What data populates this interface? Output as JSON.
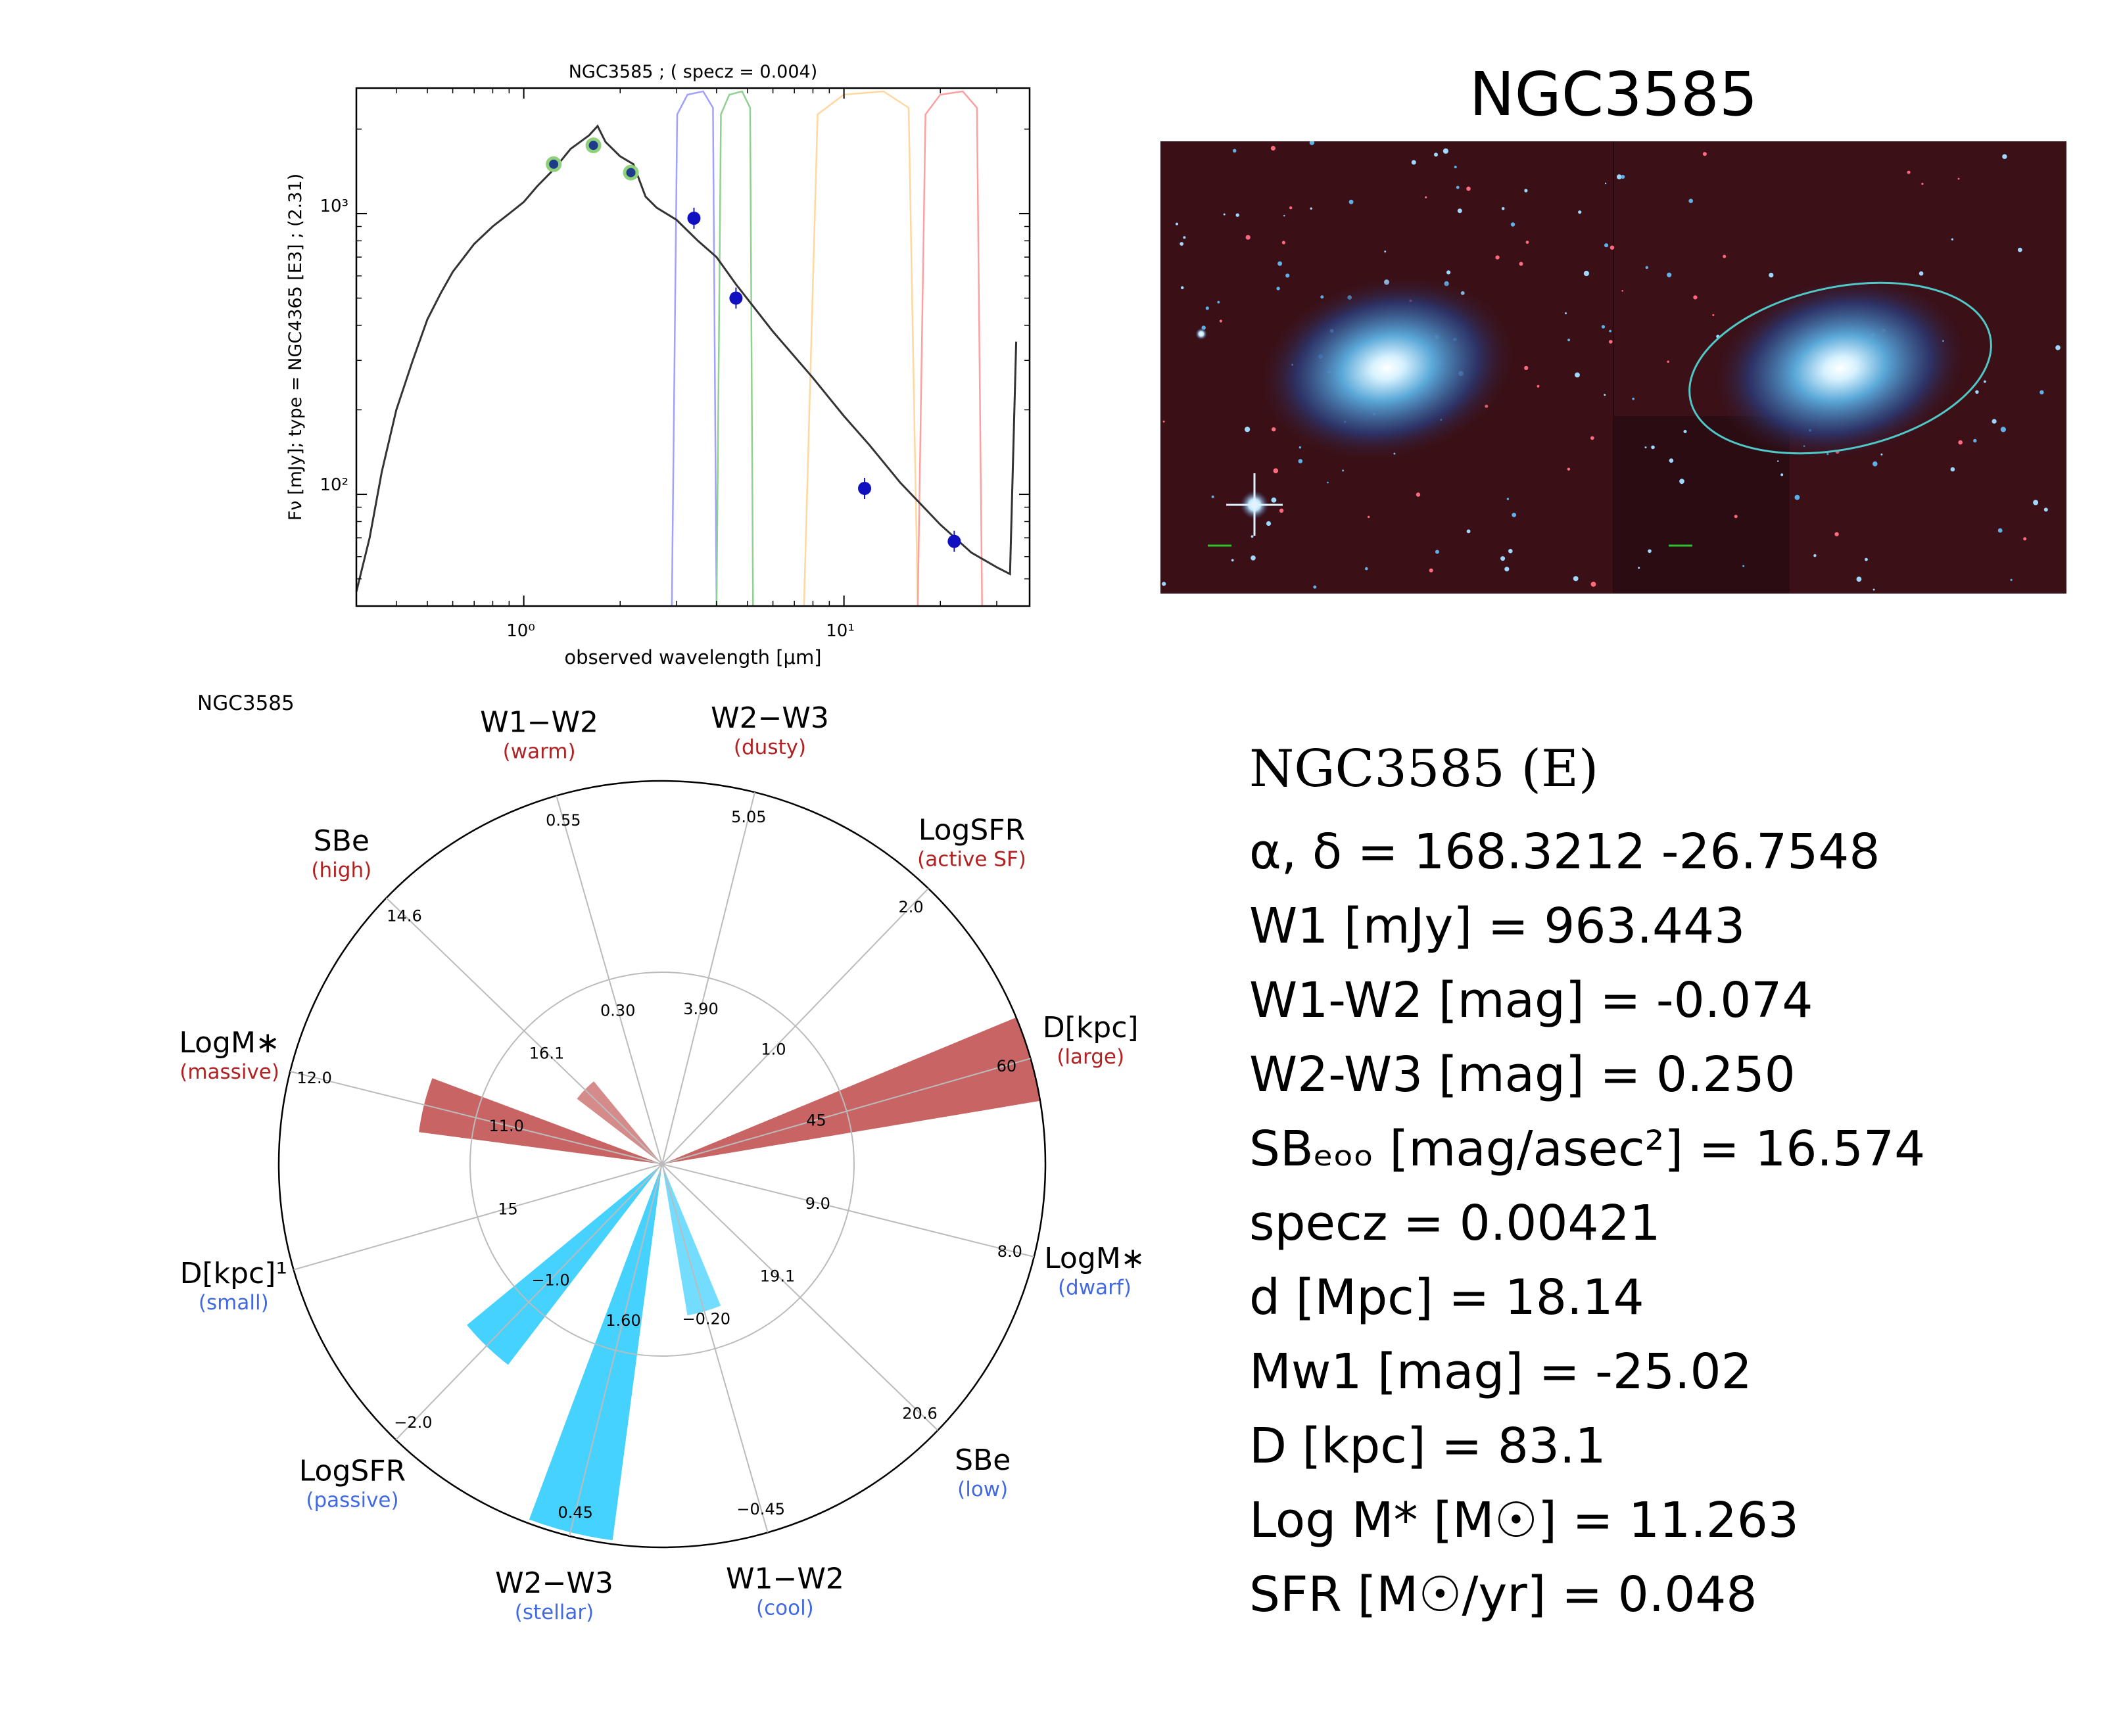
{
  "sed": {
    "title": "NGC3585 ; ( specz = 0.004)",
    "ylabel": "Fν [mJy];  type = NGC4365 [E3] ; (2.31)",
    "xlabel": "observed wavelength [μm]",
    "xticks": [
      "10⁰",
      "10¹"
    ],
    "yticks": [
      "10³",
      "10²"
    ]
  },
  "sky": {
    "title": "NGC3585"
  },
  "radar": {
    "label": "NGC3585",
    "spokes": [
      {
        "name": "W1−W2",
        "sub": "(warm)",
        "side": "high",
        "outer": "0.55",
        "mid": "0.30"
      },
      {
        "name": "W2−W3",
        "sub": "(dusty)",
        "side": "high",
        "outer": "5.05",
        "mid": "3.90"
      },
      {
        "name": "LogSFR",
        "sub": "(active SF)",
        "side": "high",
        "outer": "2.0",
        "mid": "1.0"
      },
      {
        "name": "D[kpc]",
        "sub": "(large)",
        "side": "high",
        "outer": "60",
        "mid": "45"
      },
      {
        "name": "LogM∗",
        "sub": "(dwarf)",
        "side": "low",
        "outer": "8.0",
        "mid": "9.0"
      },
      {
        "name": "SBe",
        "sub": "(low)",
        "side": "low",
        "outer": "20.6",
        "mid": "19.1"
      },
      {
        "name": "W1−W2",
        "sub": "(cool)",
        "side": "low",
        "outer": "−0.45",
        "mid": "−0.20"
      },
      {
        "name": "W2−W3",
        "sub": "(stellar)",
        "side": "low",
        "outer": "0.45",
        "mid": "1.60"
      },
      {
        "name": "LogSFR",
        "sub": "(passive)",
        "side": "low",
        "outer": "−2.0",
        "mid": "−1.0"
      },
      {
        "name": "D[kpc]¹",
        "sub": "(small)",
        "side": "low",
        "outer": "",
        "mid": "15"
      },
      {
        "name": "LogM∗",
        "sub": "(massive)",
        "side": "high",
        "outer": "12.0",
        "mid": "11.0"
      },
      {
        "name": "SBe",
        "sub": "(high)",
        "side": "high",
        "outer": "14.6",
        "mid": "16.1"
      }
    ]
  },
  "info": {
    "name": "NGC3585  (E)",
    "lines": [
      "α, δ = 168.3212 -26.7548",
      "W1 [mJy] = 963.443",
      "W1-W2 [mag] = -0.074",
      "W2-W3 [mag] = 0.250",
      "SBₑₒₒ [mag/asec²] = 16.574",
      "specz = 0.00421",
      "d [Mpc] = 18.14",
      "Mw1 [mag] = -25.02",
      "D [kpc] = 83.1",
      "Log M* [M☉] = 11.263",
      "SFR [M☉/yr] = 0.048"
    ]
  },
  "colors": {
    "high": "#b22222",
    "low": "#4169e1",
    "bar_high": "#c86464",
    "bar_low": "#46d2ff"
  },
  "chart_data": [
    {
      "type": "line",
      "title": "NGC3585 ; ( specz = 0.004)",
      "xlabel": "observed wavelength [μm]",
      "ylabel": "Fν [mJy];  type = NGC4365 [E3] ; (2.31)",
      "xscale": "log",
      "yscale": "log",
      "xlim": [
        0.3,
        38
      ],
      "ylim": [
        40,
        2800
      ],
      "series": [
        {
          "name": "",
          "style": "template",
          "x": [
            0.3,
            0.33,
            0.36,
            0.4,
            0.45,
            0.5,
            0.55,
            0.6,
            0.7,
            0.8,
            0.9,
            1.0,
            1.1,
            1.25,
            1.4,
            1.6,
            1.7,
            1.8,
            2.0,
            2.2,
            2.4,
            2.6,
            3.0,
            3.5,
            4.0,
            4.6,
            6.0,
            8.0,
            10.0,
            12.0,
            15.0,
            20.0,
            25.0,
            30.0,
            33.0,
            34.5
          ],
          "y": [
            45,
            70,
            120,
            200,
            300,
            420,
            520,
            620,
            780,
            900,
            1000,
            1100,
            1250,
            1450,
            1700,
            1900,
            2050,
            1800,
            1600,
            1500,
            1150,
            1050,
            950,
            800,
            700,
            560,
            380,
            260,
            190,
            150,
            110,
            78,
            62,
            55,
            52,
            350
          ]
        },
        {
          "name": "",
          "style": "points",
          "x": [
            1.24,
            1.65,
            2.16,
            3.4,
            4.6,
            11.6,
            22.1
          ],
          "y": [
            1500,
            1750,
            1400,
            963,
            500,
            105,
            68
          ]
        }
      ],
      "filters": [
        {
          "color": "#a0a0ff",
          "range": [
            2.9,
            4.0
          ]
        },
        {
          "color": "#90d090",
          "range": [
            4.0,
            5.2
          ]
        },
        {
          "color": "#ffd8a0",
          "range": [
            7.5,
            17
          ]
        },
        {
          "color": "#ffa0a0",
          "range": [
            17,
            27
          ]
        }
      ]
    },
    {
      "type": "radar",
      "categories": [
        "W1−W2 (warm)",
        "W2−W3 (dusty)",
        "LogSFR (active SF)",
        "D[kpc] (large)",
        "LogM∗ (dwarf)",
        "SBe (low)",
        "W1−W2 (cool)",
        "W2−W3 (stellar)",
        "LogSFR (passive)",
        "D[kpc] (small)",
        "LogM∗ (massive)",
        "SBe (high)"
      ],
      "values": [
        0,
        0,
        0,
        1.0,
        0,
        0,
        0.4,
        0.99,
        0.66,
        0,
        0.64,
        0.28
      ],
      "scale": "0 = center, 1 = outer circle",
      "colors": [
        "#c86464",
        "#c86464",
        "#c86464",
        "#c86464",
        "#46d2ff",
        "#46d2ff",
        "#46d2ff",
        "#46d2ff",
        "#46d2ff",
        "#46d2ff",
        "#c86464",
        "#c86464"
      ]
    }
  ]
}
